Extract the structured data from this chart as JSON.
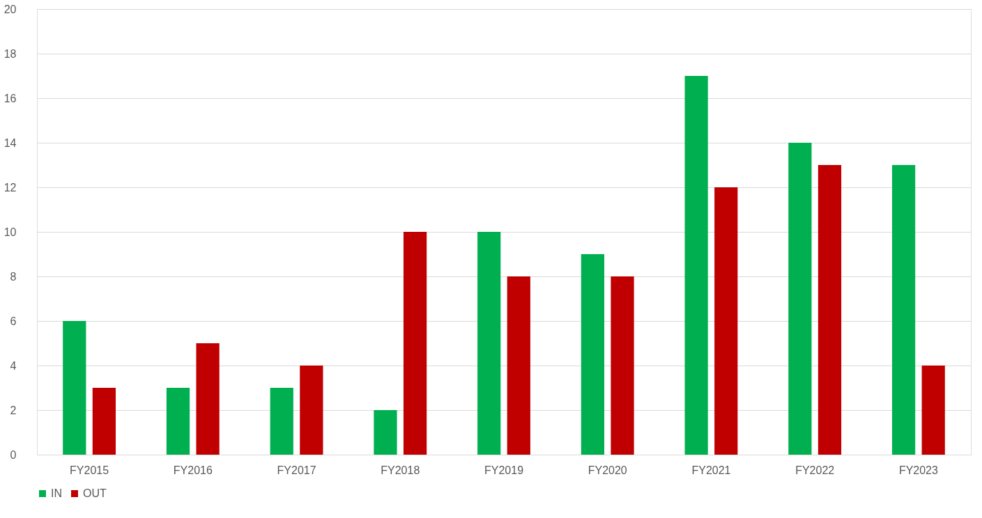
{
  "chart_data": {
    "type": "bar",
    "categories": [
      "FY2015",
      "FY2016",
      "FY2017",
      "FY2018",
      "FY2019",
      "FY2020",
      "FY2021",
      "FY2022",
      "FY2023"
    ],
    "series": [
      {
        "name": "IN",
        "color": "#00b050",
        "values": [
          6,
          3,
          3,
          2,
          10,
          9,
          17,
          14,
          13
        ]
      },
      {
        "name": "OUT",
        "color": "#c00000",
        "values": [
          3,
          5,
          4,
          10,
          8,
          8,
          12,
          13,
          4
        ]
      }
    ],
    "ylim": [
      0,
      20
    ],
    "yticks": [
      0,
      2,
      4,
      6,
      8,
      10,
      12,
      14,
      16,
      18,
      20
    ],
    "grid": "y",
    "legend": "bottom"
  }
}
